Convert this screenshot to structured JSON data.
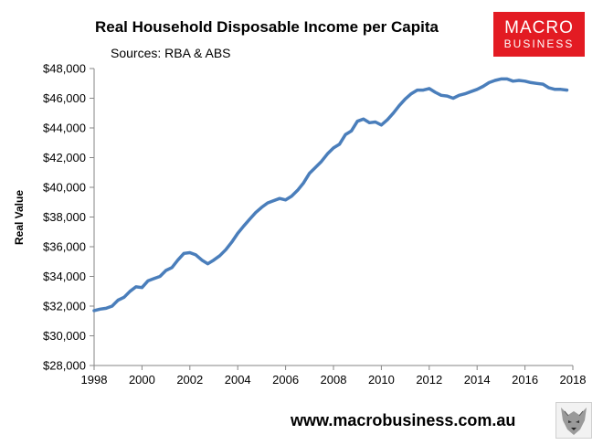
{
  "title": "Real Household Disposable Income per Capita",
  "subtitle": "Sources: RBA & ABS",
  "logo": {
    "line1": "MACRO",
    "line2": "BUSINESS",
    "color": "#e31b23"
  },
  "footer_url": "www.macrobusiness.com.au",
  "chart_data": {
    "type": "line",
    "title": "Real Household Disposable Income per Capita",
    "subtitle": "Sources: RBA & ABS",
    "xlabel": "",
    "ylabel": "Real Value",
    "xlim": [
      1998,
      2018
    ],
    "ylim": [
      28000,
      48000
    ],
    "x_ticks": [
      1998,
      2000,
      2002,
      2004,
      2006,
      2008,
      2010,
      2012,
      2014,
      2016,
      2018
    ],
    "y_ticks": [
      28000,
      30000,
      32000,
      34000,
      36000,
      38000,
      40000,
      42000,
      44000,
      46000,
      48000
    ],
    "y_tick_labels": [
      "$28,000",
      "$30,000",
      "$32,000",
      "$34,000",
      "$36,000",
      "$38,000",
      "$40,000",
      "$42,000",
      "$44,000",
      "$46,000",
      "$48,000"
    ],
    "grid": false,
    "legend": "none",
    "series": [
      {
        "color": "#4a7ebb",
        "points": [
          [
            1998.0,
            31700
          ],
          [
            1998.25,
            31800
          ],
          [
            1998.5,
            31850
          ],
          [
            1998.75,
            32000
          ],
          [
            1999.0,
            32400
          ],
          [
            1999.25,
            32600
          ],
          [
            1999.5,
            33000
          ],
          [
            1999.75,
            33300
          ],
          [
            2000.0,
            33250
          ],
          [
            2000.25,
            33700
          ],
          [
            2000.5,
            33850
          ],
          [
            2000.75,
            34000
          ],
          [
            2001.0,
            34400
          ],
          [
            2001.25,
            34600
          ],
          [
            2001.5,
            35100
          ],
          [
            2001.75,
            35550
          ],
          [
            2002.0,
            35600
          ],
          [
            2002.25,
            35450
          ],
          [
            2002.5,
            35100
          ],
          [
            2002.75,
            34850
          ],
          [
            2003.0,
            35100
          ],
          [
            2003.25,
            35400
          ],
          [
            2003.5,
            35800
          ],
          [
            2003.75,
            36300
          ],
          [
            2004.0,
            36900
          ],
          [
            2004.25,
            37400
          ],
          [
            2004.5,
            37850
          ],
          [
            2004.75,
            38300
          ],
          [
            2005.0,
            38650
          ],
          [
            2005.25,
            38950
          ],
          [
            2005.5,
            39100
          ],
          [
            2005.75,
            39250
          ],
          [
            2006.0,
            39150
          ],
          [
            2006.25,
            39400
          ],
          [
            2006.5,
            39800
          ],
          [
            2006.75,
            40300
          ],
          [
            2007.0,
            40950
          ],
          [
            2007.25,
            41350
          ],
          [
            2007.5,
            41750
          ],
          [
            2007.75,
            42250
          ],
          [
            2008.0,
            42650
          ],
          [
            2008.25,
            42900
          ],
          [
            2008.5,
            43550
          ],
          [
            2008.75,
            43800
          ],
          [
            2009.0,
            44450
          ],
          [
            2009.25,
            44600
          ],
          [
            2009.5,
            44350
          ],
          [
            2009.75,
            44400
          ],
          [
            2010.0,
            44200
          ],
          [
            2010.25,
            44550
          ],
          [
            2010.5,
            45000
          ],
          [
            2010.75,
            45500
          ],
          [
            2011.0,
            45950
          ],
          [
            2011.25,
            46300
          ],
          [
            2011.5,
            46550
          ],
          [
            2011.75,
            46550
          ],
          [
            2012.0,
            46650
          ],
          [
            2012.25,
            46400
          ],
          [
            2012.5,
            46200
          ],
          [
            2012.75,
            46150
          ],
          [
            2013.0,
            46000
          ],
          [
            2013.25,
            46200
          ],
          [
            2013.5,
            46300
          ],
          [
            2013.75,
            46450
          ],
          [
            2014.0,
            46600
          ],
          [
            2014.25,
            46800
          ],
          [
            2014.5,
            47050
          ],
          [
            2014.75,
            47200
          ],
          [
            2015.0,
            47300
          ],
          [
            2015.25,
            47300
          ],
          [
            2015.5,
            47150
          ],
          [
            2015.75,
            47200
          ],
          [
            2016.0,
            47150
          ],
          [
            2016.25,
            47050
          ],
          [
            2016.5,
            47000
          ],
          [
            2016.75,
            46950
          ],
          [
            2017.0,
            46700
          ],
          [
            2017.25,
            46600
          ],
          [
            2017.5,
            46600
          ],
          [
            2017.75,
            46550
          ]
        ]
      }
    ]
  }
}
